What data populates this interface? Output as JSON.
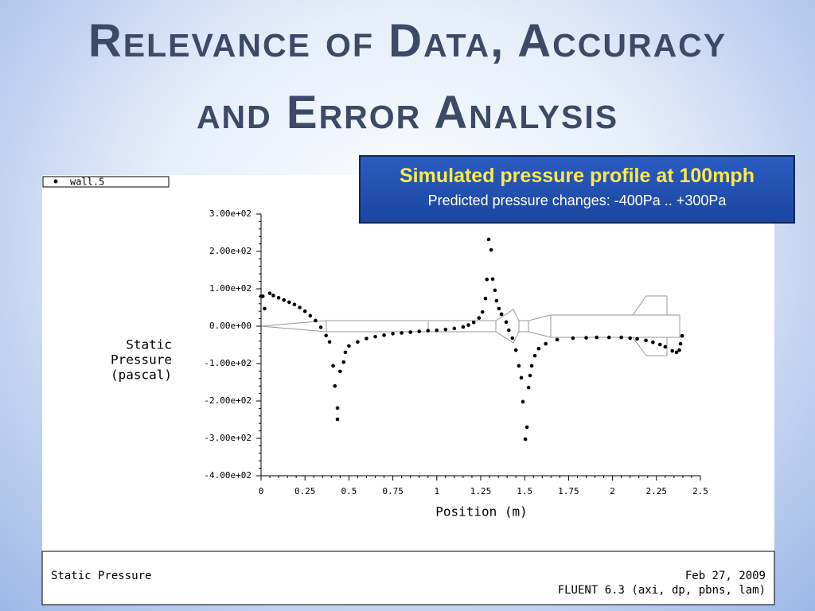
{
  "slide": {
    "title_lines": [
      "Relevance of Data, Accuracy",
      "and Error Analysis"
    ],
    "callout": {
      "heading": "Simulated pressure profile at 100mph",
      "text": "Predicted pressure changes: -400Pa .. +300Pa"
    }
  },
  "chart_data": {
    "type": "scatter",
    "xlabel": "Position (m)",
    "ylabel_lines": [
      "Static",
      "Pressure",
      "(pascal)"
    ],
    "xlim": [
      0,
      2.5
    ],
    "xticks": [
      0,
      0.25,
      0.5,
      0.75,
      1,
      1.25,
      1.5,
      1.75,
      2,
      2.25,
      2.5
    ],
    "ylim": [
      -400,
      300
    ],
    "yticks": [
      {
        "value": 300,
        "label": "3.00e+02"
      },
      {
        "value": 200,
        "label": "2.00e+02"
      },
      {
        "value": 100,
        "label": "1.00e+02"
      },
      {
        "value": 0,
        "label": "0.00e+00"
      },
      {
        "value": -100,
        "label": "-1.00e+02"
      },
      {
        "value": -200,
        "label": "-2.00e+02"
      },
      {
        "value": -300,
        "label": "-3.00e+02"
      },
      {
        "value": -400,
        "label": "-4.00e+02"
      }
    ],
    "series": [
      {
        "name": "wall.5",
        "color": "#000000",
        "x": [
          0.0,
          0.01,
          0.02,
          0.05,
          0.07,
          0.1,
          0.13,
          0.16,
          0.19,
          0.22,
          0.25,
          0.28,
          0.31,
          0.34,
          0.37,
          0.39,
          0.41,
          0.42,
          0.435,
          0.435,
          0.45,
          0.47,
          0.48,
          0.5,
          0.55,
          0.6,
          0.65,
          0.7,
          0.75,
          0.8,
          0.85,
          0.9,
          0.95,
          1.0,
          1.05,
          1.1,
          1.15,
          1.18,
          1.21,
          1.24,
          1.26,
          1.277,
          1.285,
          1.295,
          1.309,
          1.318,
          1.331,
          1.34,
          1.354,
          1.368,
          1.395,
          1.41,
          1.43,
          1.45,
          1.467,
          1.481,
          1.49,
          1.504,
          1.513,
          1.522,
          1.531,
          1.54,
          1.558,
          1.58,
          1.62,
          1.685,
          1.775,
          1.85,
          1.91,
          1.98,
          2.05,
          2.1,
          2.14,
          2.19,
          2.23,
          2.27,
          2.3,
          2.34,
          2.364,
          2.38,
          2.387,
          2.396
        ],
        "values": [
          80,
          80,
          47,
          88,
          82,
          76,
          70,
          64,
          58,
          50,
          40,
          28,
          15,
          -3,
          -25,
          -42,
          -106,
          -160,
          -219,
          -249,
          -121,
          -96,
          -70,
          -53,
          -42,
          -33,
          -28,
          -24,
          -20,
          -18,
          -16,
          -14,
          -12,
          -11,
          -9,
          -6,
          -2,
          3,
          10,
          22,
          38,
          74,
          125,
          232,
          204,
          126,
          96,
          68,
          47,
          32,
          11,
          -11,
          -32,
          -64,
          -106,
          -138,
          -202,
          -302,
          -270,
          -164,
          -132,
          -106,
          -79,
          -60,
          -47,
          -36,
          -32,
          -31,
          -30,
          -30,
          -30,
          -32,
          -34,
          -38,
          -43,
          -49,
          -55,
          -66,
          -70,
          -64,
          -47,
          -26
        ]
      }
    ]
  },
  "footer": {
    "left": "Static Pressure",
    "date": "Feb 27, 2009",
    "software": "FLUENT 6.3 (axi, dp, pbns, lam)"
  }
}
